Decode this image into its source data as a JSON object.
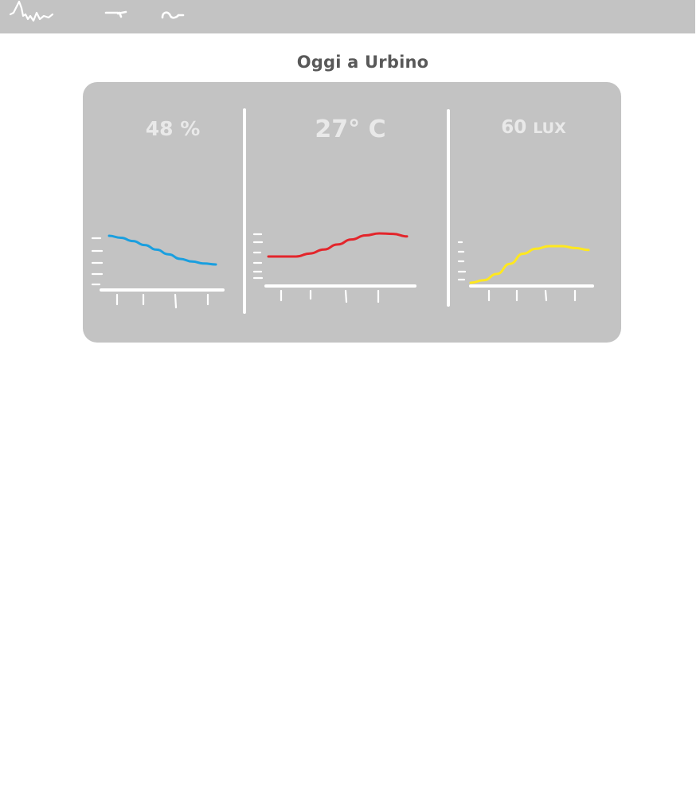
{
  "page": {
    "title": "Oggi a Urbino"
  },
  "colors": {
    "topbar": "#c3c3c3",
    "card": "#c3c3c3",
    "title": "#595959",
    "reading": "#e9e9e9",
    "sketch": "#ffffff",
    "humidity_line": "#1a9fdf",
    "temperature_line": "#e3252b",
    "light_line": "#ffe81f"
  },
  "topbar": {
    "icons": [
      "scribble-waveform-icon",
      "scribble-dash-icon",
      "scribble-loop-icon"
    ]
  },
  "panels": [
    {
      "id": "humidity",
      "value": "48",
      "unit": "%"
    },
    {
      "id": "temperature",
      "value": "27°",
      "unit": "C"
    },
    {
      "id": "light",
      "value": "60",
      "unit": "LUX"
    }
  ],
  "chart_data": [
    {
      "type": "line",
      "title": "",
      "series": [
        {
          "color": "#1a9fdf",
          "values": [
            100,
            94,
            84,
            72,
            58,
            44,
            30,
            22,
            16,
            13
          ]
        }
      ],
      "x": [
        0,
        1,
        2,
        3,
        4,
        5,
        6,
        7,
        8,
        9
      ],
      "xlabel": "",
      "ylabel": "",
      "ylim": [
        0,
        140
      ],
      "grid": false,
      "legend": "none"
    },
    {
      "type": "line",
      "title": "",
      "series": [
        {
          "color": "#e3252b",
          "values": [
            10,
            10,
            10,
            16,
            24,
            34,
            44,
            52,
            56,
            55,
            50
          ]
        }
      ],
      "x": [
        0,
        1,
        2,
        3,
        4,
        5,
        6,
        7,
        8,
        9,
        10
      ],
      "xlabel": "",
      "ylabel": "",
      "ylim": [
        0,
        80
      ],
      "grid": false,
      "legend": "none"
    },
    {
      "type": "line",
      "title": "",
      "series": [
        {
          "color": "#ffe81f",
          "values": [
            0,
            4,
            14,
            30,
            46,
            54,
            58,
            58,
            55,
            52
          ]
        }
      ],
      "x": [
        0,
        1,
        2,
        3,
        4,
        5,
        6,
        7,
        8,
        9
      ],
      "xlabel": "",
      "ylabel": "",
      "ylim": [
        0,
        70
      ],
      "grid": false,
      "legend": "none"
    }
  ]
}
